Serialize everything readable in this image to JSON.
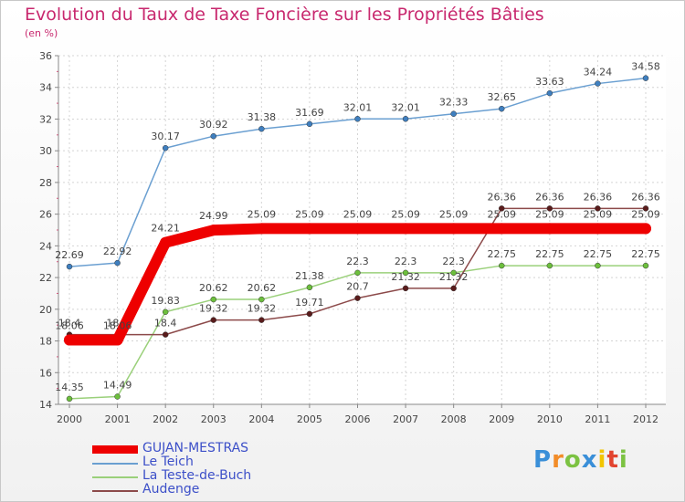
{
  "chart_data": {
    "type": "line",
    "title": "Evolution du Taux de Taxe Foncière sur les Propriétés Bâties",
    "unit_label": "(en %)",
    "xlabel": "",
    "ylabel": "",
    "ylim": [
      14,
      36
    ],
    "yticks": [
      14,
      16,
      18,
      20,
      22,
      24,
      26,
      28,
      30,
      32,
      34,
      36
    ],
    "categories": [
      "2000",
      "2001",
      "2002",
      "2003",
      "2004",
      "2005",
      "2006",
      "2007",
      "2008",
      "2009",
      "2010",
      "2011",
      "2012"
    ],
    "series": [
      {
        "name": "Le Teich",
        "color": "#6a9fd1",
        "marker": "#3f7fbf",
        "values": [
          22.69,
          22.92,
          30.17,
          30.92,
          31.38,
          31.69,
          32.01,
          32.01,
          32.33,
          32.65,
          33.63,
          34.24,
          34.58
        ],
        "labels": [
          "22.69",
          "22.92",
          "30.17",
          "30.92",
          "31.38",
          "31.69",
          "32.01",
          "32.01",
          "32.33",
          "32.65",
          "33.63",
          "34.24",
          "34.58"
        ]
      },
      {
        "name": "La Teste-de-Buch",
        "color": "#9ad07a",
        "marker": "#6cbf3c",
        "values": [
          14.35,
          14.49,
          19.83,
          20.62,
          20.62,
          21.38,
          22.3,
          22.3,
          22.3,
          22.75,
          22.75,
          22.75,
          22.75
        ],
        "labels": [
          "14.35",
          "14.49",
          "19.83",
          "20.62",
          "20.62",
          "21.38",
          "22.3",
          "22.3",
          "22.3",
          "22.75",
          "22.75",
          "22.75",
          "22.75"
        ]
      },
      {
        "name": "Audenge",
        "color": "#8c4a4a",
        "marker": "#5a1c1c",
        "values": [
          18.4,
          18.4,
          18.4,
          19.32,
          19.32,
          19.71,
          20.7,
          21.32,
          21.32,
          26.36,
          26.36,
          26.36,
          26.36
        ],
        "labels": [
          "18.4",
          "18.4",
          "18.4",
          "19.32",
          "19.32",
          "19.71",
          "20.7",
          "21.32",
          "21.32",
          "26.36",
          "26.36",
          "26.36",
          "26.36"
        ]
      },
      {
        "name": "GUJAN-MESTRAS",
        "color": "#ee0000",
        "marker": "#ee0000",
        "bold": true,
        "values": [
          18.06,
          18.06,
          24.21,
          24.99,
          25.09,
          25.09,
          25.09,
          25.09,
          25.09,
          25.09,
          25.09,
          25.09,
          25.09
        ],
        "labels": [
          "18.06",
          "18.06",
          "24.21",
          "24.99",
          "25.09",
          "25.09",
          "25.09",
          "25.09",
          "25.09",
          "25.09",
          "25.09",
          "25.09",
          "25.09"
        ]
      }
    ],
    "legend": [
      {
        "name": "GUJAN-MESTRAS",
        "color": "#ee0000",
        "bold": true
      },
      {
        "name": "Le Teich",
        "color": "#6a9fd1"
      },
      {
        "name": "La Teste-de-Buch",
        "color": "#9ad07a"
      },
      {
        "name": "Audenge",
        "color": "#8c4a4a"
      }
    ]
  },
  "logo": {
    "letters": [
      "P",
      "r",
      "o",
      "x",
      "i",
      "t",
      "i"
    ],
    "colors": [
      "#3a8fd8",
      "#f28c28",
      "#7cc242",
      "#3a8fd8",
      "#f2c500",
      "#e2442f",
      "#7cc242"
    ]
  }
}
